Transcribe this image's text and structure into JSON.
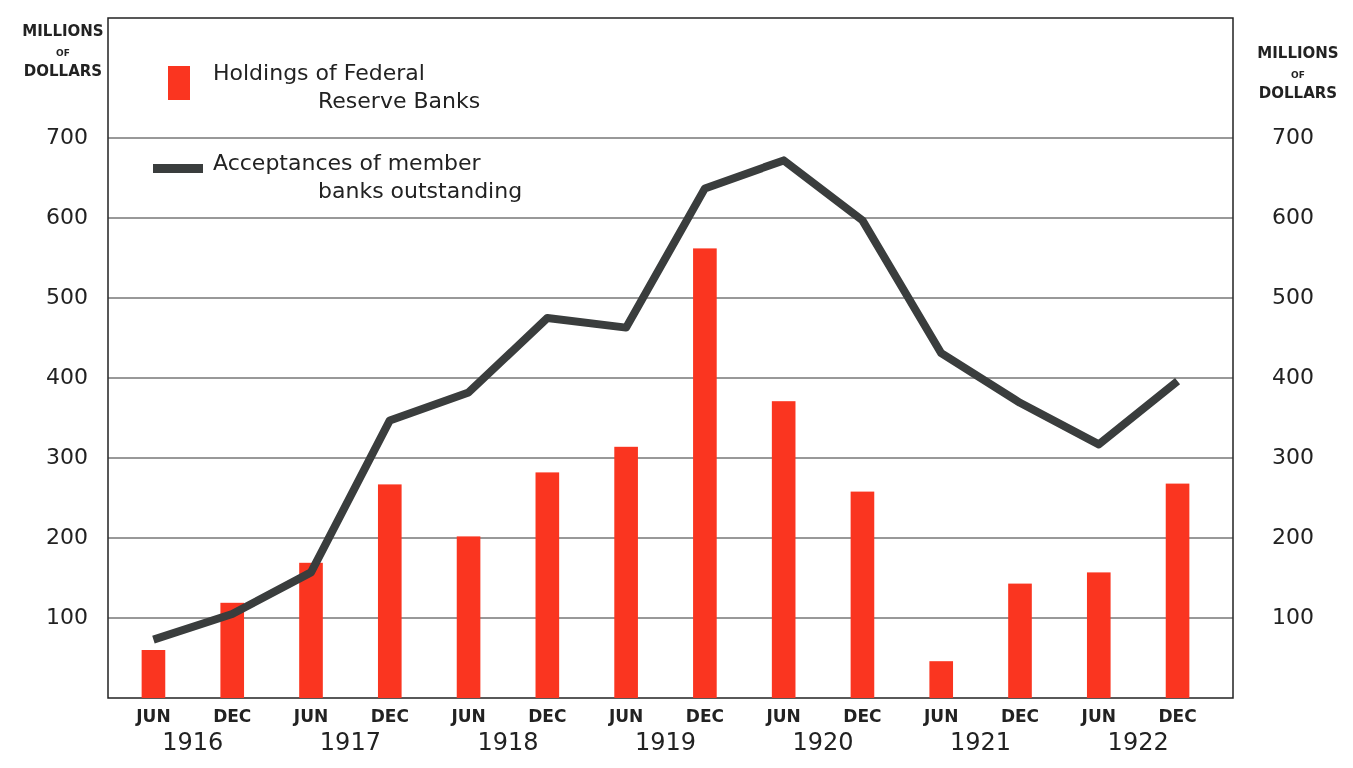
{
  "chart_data": {
    "type": "bar",
    "ylabel": "MILLIONS OF DOLLARS",
    "y2label": "MILLIONS OF DOLLARS",
    "categories": [
      "JUN",
      "DEC",
      "JUN",
      "DEC",
      "JUN",
      "DEC",
      "JUN",
      "DEC",
      "JUN",
      "DEC",
      "JUN",
      "DEC",
      "JUN",
      "DEC"
    ],
    "annotations": [
      "1916",
      "1917",
      "1918",
      "1919",
      "1920",
      "1921",
      "1922"
    ],
    "series": [
      {
        "name": "Holdings of Federal Reserve Banks",
        "color": "#fa3520",
        "values": [
          60,
          119,
          169,
          267,
          202,
          282,
          314,
          562,
          371,
          258,
          46,
          143,
          157,
          268
        ]
      },
      {
        "name": "Acceptances of member banks outstanding",
        "type": "line",
        "color": "#3a3d3d",
        "values": [
          73,
          105,
          157,
          347,
          382,
          475,
          463,
          637,
          672,
          597,
          431,
          369,
          317,
          396
        ]
      }
    ],
    "ylim": [
      0,
      850
    ],
    "yticks": [
      100,
      200,
      300,
      400,
      500,
      600,
      700
    ],
    "y2lim": [
      0,
      850
    ],
    "y2ticks": [
      100,
      200,
      300,
      400,
      500,
      600,
      700
    ],
    "grid": "y",
    "legend": "top left"
  }
}
